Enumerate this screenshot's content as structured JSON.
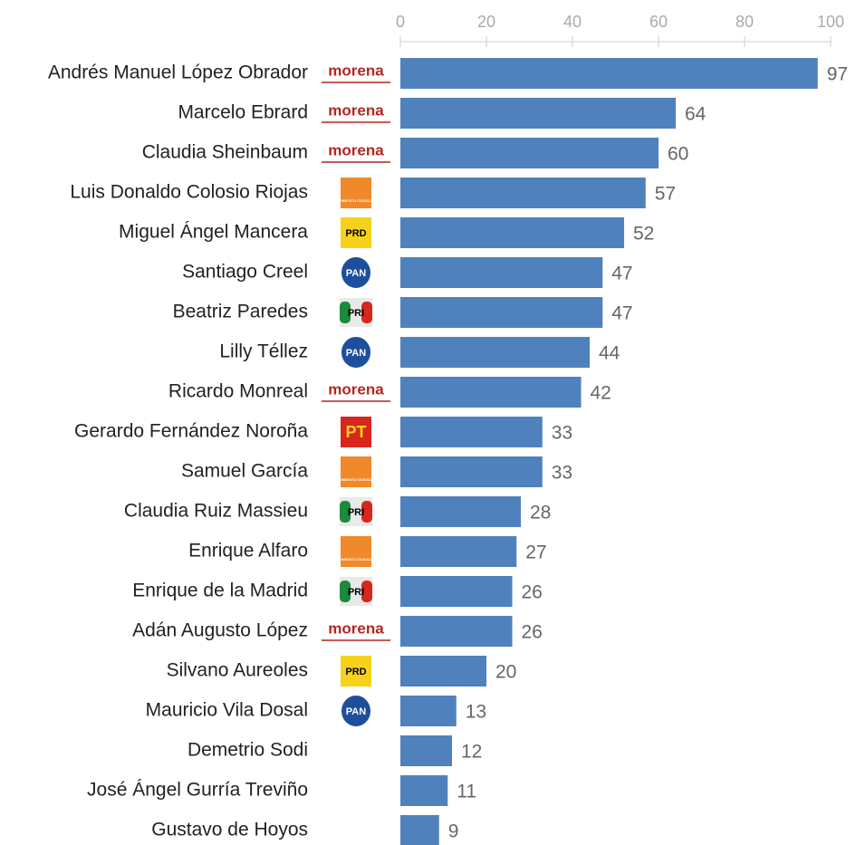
{
  "chart_data": {
    "type": "bar",
    "orientation": "horizontal",
    "categories": [
      "Andrés Manuel López Obrador",
      "Marcelo Ebrard",
      "Claudia Sheinbaum",
      "Luis Donaldo Colosio Riojas",
      "Miguel Ángel Mancera",
      "Santiago Creel",
      "Beatriz Paredes",
      "Lilly Téllez",
      "Ricardo Monreal",
      "Gerardo Fernández Noroña",
      "Samuel García",
      "Claudia Ruiz Massieu",
      "Enrique Alfaro",
      "Enrique de la Madrid",
      "Adán Augusto López",
      "Silvano Aureoles",
      "Mauricio Vila Dosal",
      "Demetrio Sodi",
      "José Ángel Gurría Treviño",
      "Gustavo de Hoyos"
    ],
    "values": [
      97,
      64,
      60,
      57,
      52,
      47,
      47,
      44,
      42,
      33,
      33,
      28,
      27,
      26,
      26,
      20,
      13,
      12,
      11,
      9
    ],
    "parties": [
      {
        "label": "morena",
        "color": "#b3261e",
        "fill": "none",
        "shape": "text"
      },
      {
        "label": "morena",
        "color": "#b3261e",
        "fill": "none",
        "shape": "text"
      },
      {
        "label": "morena",
        "color": "#b3261e",
        "fill": "none",
        "shape": "text"
      },
      {
        "label": "MOVIMIENTO CIUDADANO",
        "color": "#ffffff",
        "fill": "#f0892a",
        "shape": "square"
      },
      {
        "label": "PRD",
        "color": "#000000",
        "fill": "#f7d21a",
        "shape": "square"
      },
      {
        "label": "PAN",
        "color": "#ffffff",
        "fill": "#1d4f9c",
        "shape": "circle"
      },
      {
        "label": "PRI",
        "color": "#000000",
        "fill": "#e9e9e9",
        "shape": "tricolor"
      },
      {
        "label": "PAN",
        "color": "#ffffff",
        "fill": "#1d4f9c",
        "shape": "circle"
      },
      {
        "label": "morena",
        "color": "#b3261e",
        "fill": "none",
        "shape": "text"
      },
      {
        "label": "PT",
        "color": "#f7d21a",
        "fill": "#d7261e",
        "shape": "square"
      },
      {
        "label": "MOVIMIENTO CIUDADANO",
        "color": "#ffffff",
        "fill": "#f0892a",
        "shape": "square"
      },
      {
        "label": "PRI",
        "color": "#000000",
        "fill": "#e9e9e9",
        "shape": "tricolor"
      },
      {
        "label": "MOVIMIENTO CIUDADANO",
        "color": "#ffffff",
        "fill": "#f0892a",
        "shape": "square"
      },
      {
        "label": "PRI",
        "color": "#000000",
        "fill": "#e9e9e9",
        "shape": "tricolor"
      },
      {
        "label": "morena",
        "color": "#b3261e",
        "fill": "none",
        "shape": "text"
      },
      {
        "label": "PRD",
        "color": "#000000",
        "fill": "#f7d21a",
        "shape": "square"
      },
      {
        "label": "PAN",
        "color": "#ffffff",
        "fill": "#1d4f9c",
        "shape": "circle"
      },
      null,
      null,
      null
    ],
    "color": "#4f81bd",
    "xlim": [
      0,
      100
    ],
    "xticks": [
      0,
      20,
      40,
      60,
      80,
      100
    ]
  }
}
